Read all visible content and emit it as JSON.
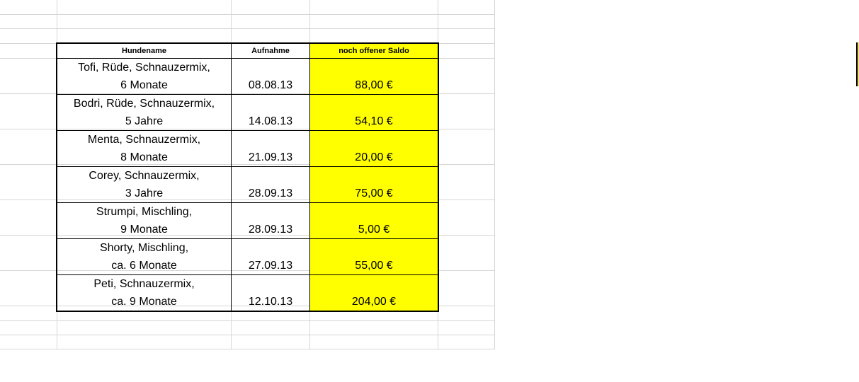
{
  "headers": {
    "name": "Hundename",
    "date": "Aufnahme",
    "balance": "noch offener Saldo"
  },
  "highlight_color": "#ffff00",
  "rows": [
    {
      "name1": "Tofi, Rüde, Schnauzermix,",
      "name2": "6 Monate",
      "date": "08.08.13",
      "balance": "88,00 €"
    },
    {
      "name1": "Bodri, Rüde, Schnauzermix,",
      "name2": "5 Jahre",
      "date": "14.08.13",
      "balance": "54,10 €"
    },
    {
      "name1": "Menta, Schnauzermix,",
      "name2": "8 Monate",
      "date": "21.09.13",
      "balance": "20,00 €"
    },
    {
      "name1": "Corey, Schnauzermix,",
      "name2": "3 Jahre",
      "date": "28.09.13",
      "balance": "75,00 €"
    },
    {
      "name1": "Strumpi, Mischling,",
      "name2": "9 Monate",
      "date": "28.09.13",
      "balance": "5,00 €"
    },
    {
      "name1": "Shorty, Mischling,",
      "name2": "ca. 6 Monate",
      "date": "27.09.13",
      "balance": "55,00 €"
    },
    {
      "name1": "Peti, Schnauzermix,",
      "name2": "ca. 9 Monate",
      "date": "12.10.13",
      "balance": "204,00 €"
    }
  ]
}
